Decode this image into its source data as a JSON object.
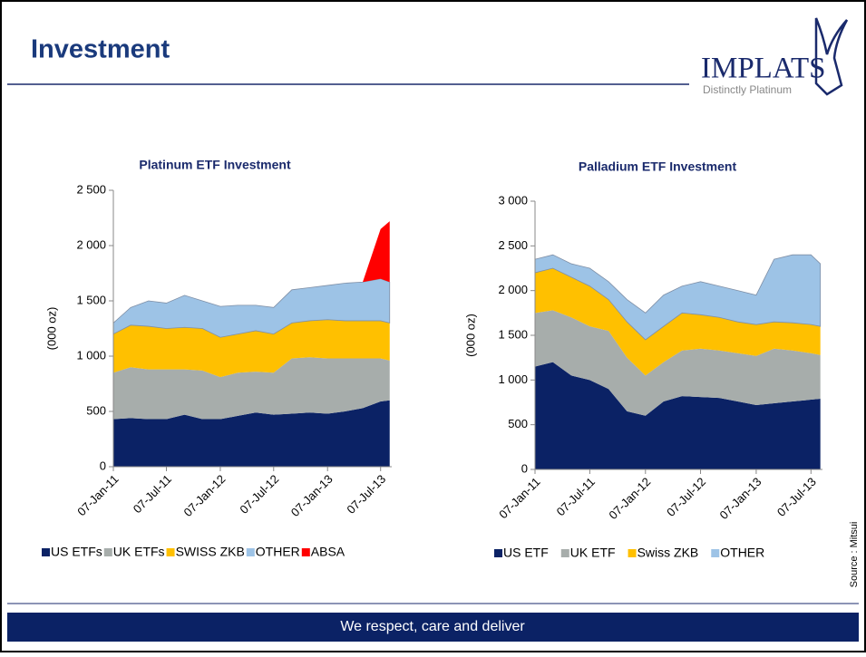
{
  "title": "Investment",
  "logo": {
    "name": "IMPLATS",
    "tagline": "Distinctly Platinum"
  },
  "footer": "We respect, care and deliver",
  "source": "Source : Mitsui",
  "chart_data": [
    {
      "type": "area",
      "stacked": true,
      "title": "Platinum ETF Investment",
      "y_label": "(000 oz)",
      "x": [
        "2011-01-07",
        "2011-03-07",
        "2011-05-07",
        "2011-07-07",
        "2011-09-07",
        "2011-11-07",
        "2012-01-07",
        "2012-03-07",
        "2012-05-07",
        "2012-07-07",
        "2012-09-07",
        "2012-11-07",
        "2013-01-07",
        "2013-03-07",
        "2013-05-07",
        "2013-07-07",
        "2013-08-07"
      ],
      "xlim": [
        "2011-01-07",
        "2013-08-14"
      ],
      "xticks": [
        {
          "value": "2011-01-07",
          "label": "07-Jan-11"
        },
        {
          "value": "2011-07-07",
          "label": "07-Jul-11"
        },
        {
          "value": "2012-01-07",
          "label": "07-Jan-12"
        },
        {
          "value": "2012-07-07",
          "label": "07-Jul-12"
        },
        {
          "value": "2013-01-07",
          "label": "07-Jan-13"
        },
        {
          "value": "2013-07-07",
          "label": "07-Jul-13"
        }
      ],
      "ylim": [
        0,
        2500
      ],
      "yticks": [
        0,
        500,
        {
          "value": 1000,
          "label": "1 000"
        },
        {
          "value": 1500,
          "label": "1 500"
        },
        {
          "value": 2000,
          "label": "2 000"
        },
        {
          "value": 2500,
          "label": "2 500"
        }
      ],
      "legend": "bottom",
      "series": [
        {
          "name": "US ETFs",
          "color": "#0b2265",
          "values": [
            430,
            440,
            430,
            430,
            470,
            430,
            430,
            460,
            490,
            470,
            480,
            490,
            480,
            500,
            530,
            590,
            600
          ]
        },
        {
          "name": "UK ETFs",
          "color": "#a7adab",
          "values": [
            420,
            460,
            450,
            450,
            410,
            440,
            380,
            390,
            370,
            380,
            500,
            500,
            500,
            480,
            450,
            390,
            360
          ]
        },
        {
          "name": "SWISS ZKB",
          "color": "#ffc000",
          "values": [
            350,
            380,
            390,
            370,
            380,
            380,
            360,
            350,
            370,
            350,
            320,
            330,
            350,
            340,
            340,
            340,
            340
          ]
        },
        {
          "name": "OTHER",
          "color": "#9dc3e6",
          "values": [
            100,
            160,
            230,
            230,
            290,
            250,
            280,
            260,
            230,
            240,
            300,
            300,
            310,
            340,
            350,
            380,
            370
          ]
        },
        {
          "name": "ABSA",
          "color": "#ff0000",
          "values": [
            0,
            0,
            0,
            0,
            0,
            0,
            0,
            0,
            0,
            0,
            0,
            0,
            0,
            0,
            0,
            450,
            550
          ]
        }
      ]
    },
    {
      "type": "area",
      "stacked": true,
      "title": "Palladium ETF Investment",
      "y_label": "(000 oz)",
      "x": [
        "2011-01-07",
        "2011-03-07",
        "2011-05-07",
        "2011-07-07",
        "2011-09-07",
        "2011-11-07",
        "2012-01-07",
        "2012-03-07",
        "2012-05-07",
        "2012-07-07",
        "2012-09-07",
        "2012-11-07",
        "2013-01-07",
        "2013-03-07",
        "2013-05-07",
        "2013-07-07",
        "2013-08-07"
      ],
      "xlim": [
        "2011-01-07",
        "2013-08-14"
      ],
      "xticks": [
        {
          "value": "2011-01-07",
          "label": "07-Jan-11"
        },
        {
          "value": "2011-07-07",
          "label": "07-Jul-11"
        },
        {
          "value": "2012-01-07",
          "label": "07-Jan-12"
        },
        {
          "value": "2012-07-07",
          "label": "07-Jul-12"
        },
        {
          "value": "2013-01-07",
          "label": "07-Jan-13"
        },
        {
          "value": "2013-07-07",
          "label": "07-Jul-13"
        }
      ],
      "ylim": [
        0,
        3000
      ],
      "yticks": [
        0,
        500,
        {
          "value": 1000,
          "label": "1 000"
        },
        {
          "value": 1500,
          "label": "1 500"
        },
        {
          "value": 2000,
          "label": "2 000"
        },
        {
          "value": 2500,
          "label": "2 500"
        },
        {
          "value": 3000,
          "label": "3 000"
        }
      ],
      "legend": "bottom",
      "series": [
        {
          "name": "US ETF",
          "color": "#0b2265",
          "values": [
            1150,
            1200,
            1050,
            1000,
            900,
            650,
            600,
            760,
            820,
            810,
            800,
            760,
            720,
            740,
            760,
            780,
            790
          ]
        },
        {
          "name": "UK ETF",
          "color": "#a7adab",
          "values": [
            600,
            580,
            650,
            600,
            650,
            600,
            450,
            440,
            510,
            540,
            530,
            540,
            550,
            610,
            570,
            520,
            490
          ]
        },
        {
          "name": "Swiss ZKB",
          "color": "#ffc000",
          "values": [
            450,
            470,
            450,
            450,
            350,
            400,
            400,
            400,
            420,
            380,
            370,
            350,
            350,
            300,
            310,
            320,
            320
          ]
        },
        {
          "name": "OTHER",
          "color": "#9dc3e6",
          "values": [
            150,
            150,
            150,
            200,
            200,
            250,
            300,
            350,
            300,
            370,
            350,
            350,
            330,
            700,
            760,
            780,
            700
          ]
        }
      ]
    }
  ]
}
